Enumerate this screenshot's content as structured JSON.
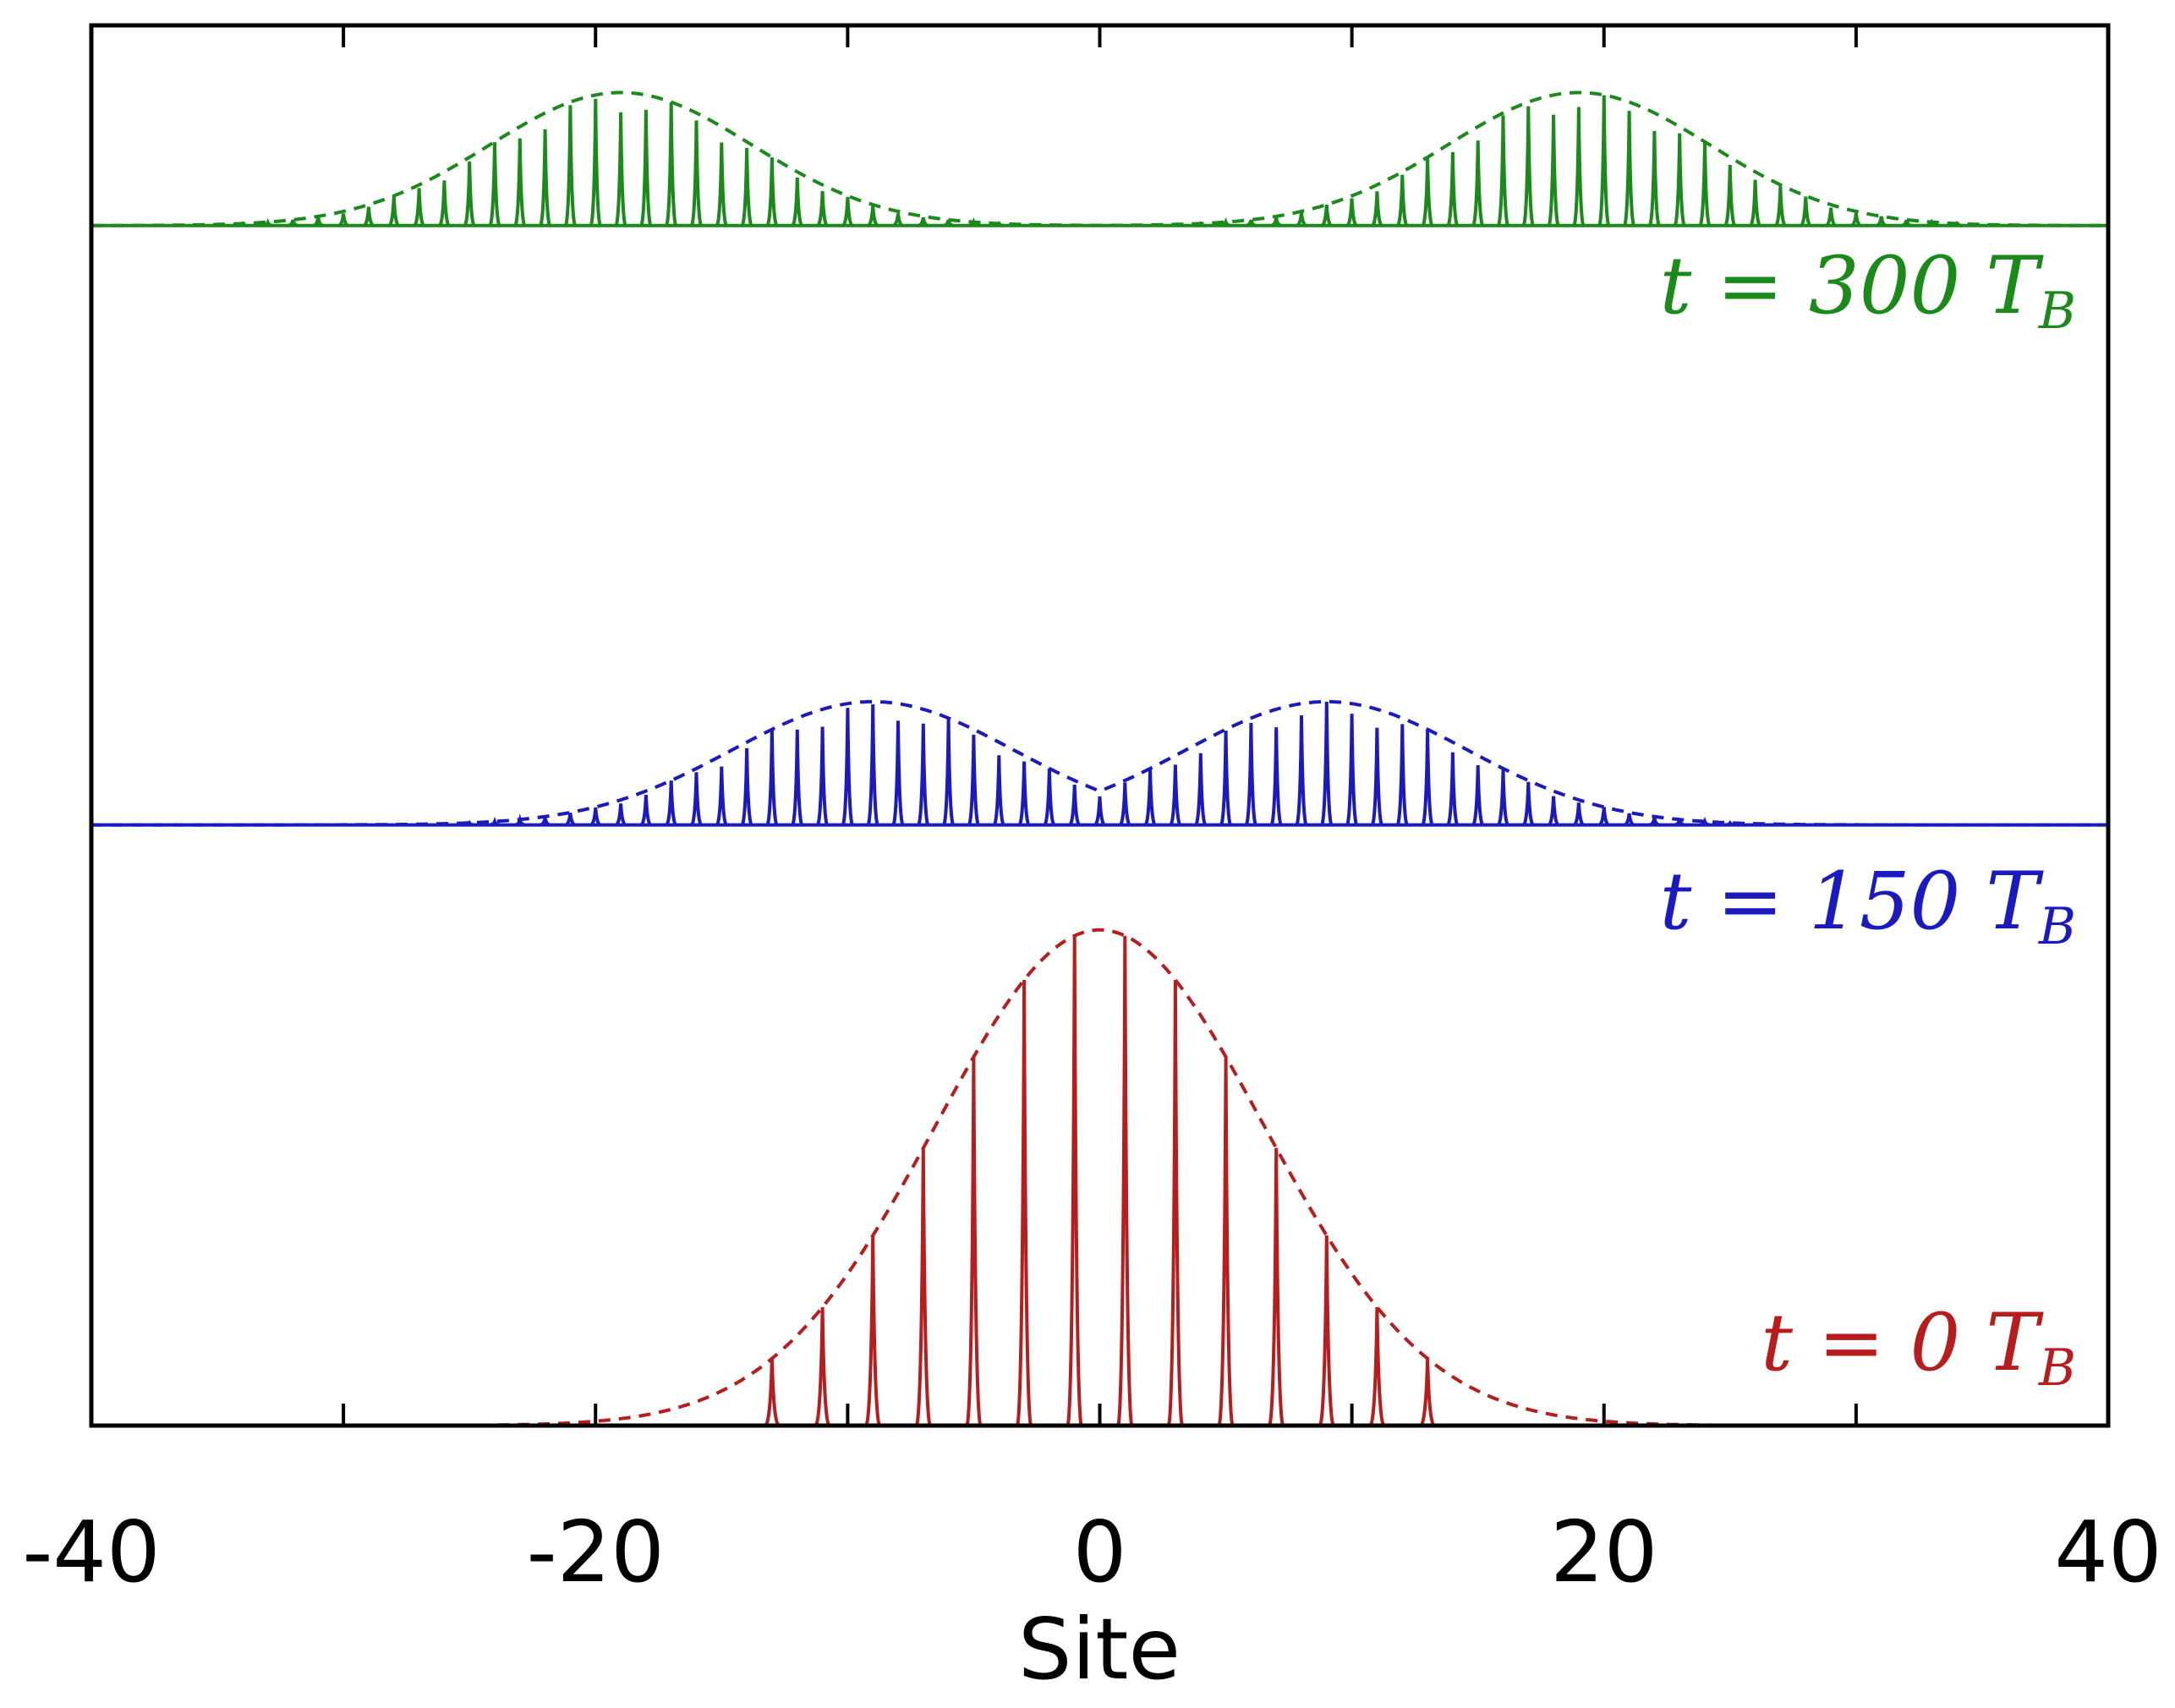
{
  "chart_data": {
    "type": "line",
    "title": "",
    "xlabel": "Site",
    "ylabel": "",
    "xlim": [
      -40,
      40
    ],
    "xticks": [
      -40,
      -20,
      0,
      20,
      40
    ],
    "xtick_labels": [
      "-40",
      "-20",
      "0",
      "20",
      "40"
    ],
    "grid": false,
    "series": [
      {
        "name": "t = 0 T_B",
        "label_main": "t = 0 ",
        "label_sub": "B",
        "label_T": "T",
        "color": "#b81c1c",
        "baseline_fraction": 0.0,
        "peak_height_fraction": 0.354,
        "envelope": {
          "type": "gaussian",
          "center": 0,
          "sigma": 6.5
        },
        "peak_sites": [
          -13,
          -11,
          -9,
          -7,
          -5,
          -3,
          -1,
          1,
          3,
          5,
          7,
          9,
          11,
          13
        ],
        "peak_width_sites": 0.28
      },
      {
        "name": "t = 150 T_B",
        "label_main": "t = 150 ",
        "label_sub": "B",
        "label_T": "T",
        "color": "#1a1ac0",
        "baseline_fraction": 0.429,
        "peak_height_fraction": 0.088,
        "envelope": {
          "type": "double-gaussian",
          "centers": [
            -9,
            9
          ],
          "sigma": 5.6
        },
        "peak_spacing_sites": 1,
        "peak_width_sites": 0.2
      },
      {
        "name": "t = 300 T_B",
        "label_main": "t = 300 ",
        "label_sub": "B",
        "label_T": "T",
        "color": "#1a8a1a",
        "baseline_fraction": 0.857,
        "peak_height_fraction": 0.095,
        "envelope": {
          "type": "double-gaussian",
          "centers": [
            -19,
            19
          ],
          "sigma": 5.2
        },
        "peak_spacing_sites": 1,
        "peak_width_sites": 0.2
      }
    ]
  }
}
